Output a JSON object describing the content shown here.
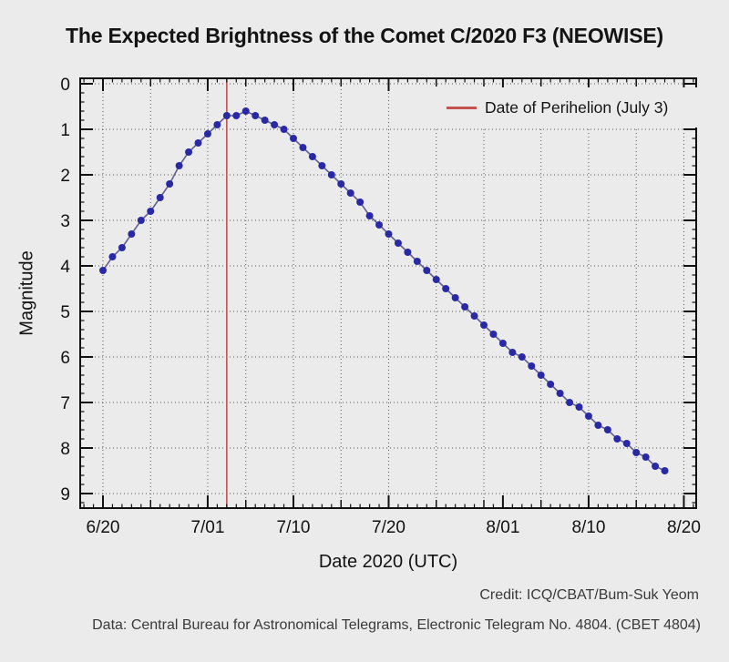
{
  "title": "The Expected Brightness of the Comet C/2020 F3 (NEOWISE)",
  "legend": {
    "label": "Date of Perihelion (July 3)",
    "line_color": "#c4524e"
  },
  "credits": {
    "credit_line": "Credit: ICQ/CBAT/Bum-Suk Yeom",
    "data_line": "Data: Central Bureau for Astronomical Telegrams, Electronic Telegram No. 4804. (CBET 4804)"
  },
  "colors": {
    "background": "#ebebeb",
    "frame": "#111111",
    "grid": "#555555",
    "marker": "#2a29a5",
    "series_line": "#62628e",
    "perihelion_line": "#c4524e"
  },
  "chart_data": {
    "type": "line",
    "title": "The Expected Brightness of the Comet C/2020 F3 (NEOWISE)",
    "xlabel": "Date 2020 (UTC)",
    "ylabel": "Magnitude",
    "y_axis_inverted_note": "magnitude 0 at top, 9 at bottom",
    "ylim": [
      0,
      9
    ],
    "x_range_dates": [
      "6/18",
      "8/22"
    ],
    "grid": "dotted",
    "legend_position": "top-right inside plot",
    "x_dates": [
      "6/20",
      "6/21",
      "6/22",
      "6/23",
      "6/24",
      "6/25",
      "6/26",
      "6/27",
      "6/28",
      "6/29",
      "6/30",
      "7/01",
      "7/02",
      "7/03",
      "7/04",
      "7/05",
      "7/06",
      "7/07",
      "7/08",
      "7/09",
      "7/10",
      "7/11",
      "7/12",
      "7/13",
      "7/14",
      "7/15",
      "7/16",
      "7/17",
      "7/18",
      "7/19",
      "7/20",
      "7/21",
      "7/22",
      "7/23",
      "7/24",
      "7/25",
      "7/26",
      "7/27",
      "7/28",
      "7/29",
      "7/30",
      "7/31",
      "8/01",
      "8/02",
      "8/03",
      "8/04",
      "8/05",
      "8/06",
      "8/07",
      "8/08",
      "8/09",
      "8/10",
      "8/11",
      "8/12",
      "8/13",
      "8/14",
      "8/15",
      "8/16",
      "8/17",
      "8/18"
    ],
    "magnitudes": [
      4.1,
      3.8,
      3.6,
      3.3,
      3.0,
      2.8,
      2.5,
      2.2,
      1.8,
      1.5,
      1.3,
      1.1,
      0.9,
      0.7,
      0.7,
      0.6,
      0.7,
      0.8,
      0.9,
      1.0,
      1.2,
      1.4,
      1.6,
      1.8,
      2.0,
      2.2,
      2.4,
      2.6,
      2.9,
      3.1,
      3.3,
      3.5,
      3.7,
      3.9,
      4.1,
      4.3,
      4.5,
      4.7,
      4.9,
      5.1,
      5.3,
      5.5,
      5.7,
      5.9,
      6.0,
      6.2,
      6.4,
      6.6,
      6.8,
      7.0,
      7.1,
      7.3,
      7.5,
      7.6,
      7.8,
      7.9,
      8.1,
      8.2,
      8.4,
      8.5
    ],
    "perihelion": {
      "date": "7/03",
      "day_index": 13
    },
    "x_major_ticks": [
      {
        "label": "6/20",
        "day_index": 0
      },
      {
        "label": "7/01",
        "day_index": 11
      },
      {
        "label": "7/10",
        "day_index": 20
      },
      {
        "label": "7/20",
        "day_index": 30
      },
      {
        "label": "8/01",
        "day_index": 42
      },
      {
        "label": "8/10",
        "day_index": 51
      },
      {
        "label": "8/20",
        "day_index": 61
      }
    ],
    "x_grid_day_indices": [
      0,
      5,
      11,
      15,
      20,
      25,
      30,
      35,
      40,
      46,
      51,
      56,
      61
    ],
    "y_major_ticks": [
      "0",
      "1",
      "2",
      "3",
      "4",
      "5",
      "6",
      "7",
      "8",
      "9"
    ]
  }
}
